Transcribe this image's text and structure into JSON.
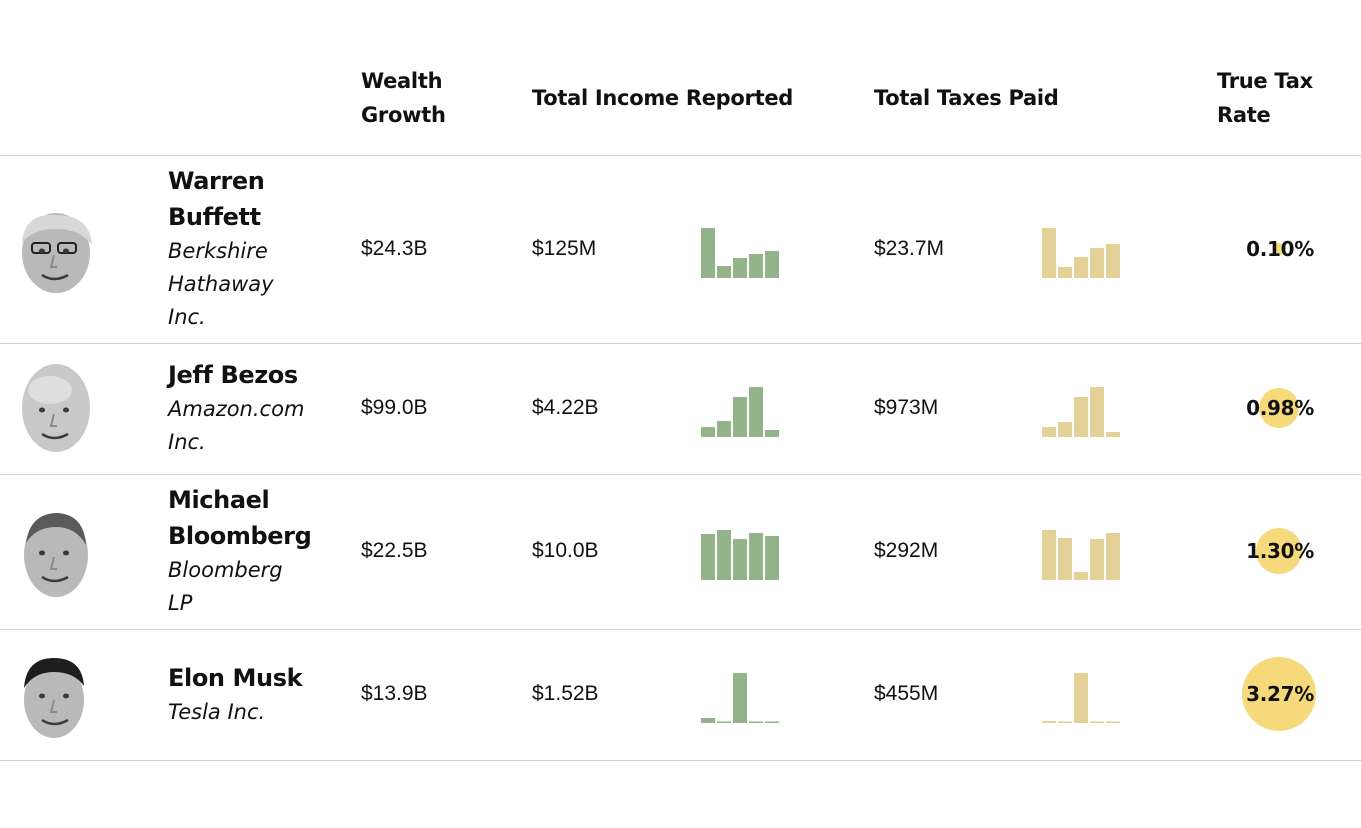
{
  "header": {
    "wealth_growth": [
      "Wealth",
      "Growth"
    ],
    "total_income": "Total Income Reported",
    "total_taxes": "Total Taxes Paid",
    "true_tax_rate": [
      "True Tax",
      "Rate"
    ]
  },
  "colors": {
    "income_bar": "#93b48a",
    "taxes_bar": "#e3d197",
    "rate_circle": "#f5d97a",
    "divider": "#cfcfcf"
  },
  "chart_data": {
    "type": "table",
    "columns": [
      "Wealth Growth",
      "Total Income Reported",
      "Total Taxes Paid",
      "True Tax Rate"
    ],
    "rows": [
      {
        "name_lines": [
          "Warren",
          "Buffett"
        ],
        "company_lines": [
          "Berkshire",
          "Hathaway",
          "Inc."
        ],
        "avatar": "warren-buffett-portrait",
        "wealth_growth": "$24.3B",
        "total_income": "$125M",
        "total_taxes": "$23.7M",
        "true_tax_rate": "0.10%",
        "rate_value": 0.1,
        "income_bars": [
          1.0,
          0.24,
          0.4,
          0.48,
          0.54
        ],
        "tax_bars": [
          1.0,
          0.22,
          0.42,
          0.6,
          0.68
        ]
      },
      {
        "name_lines": [
          "Jeff Bezos"
        ],
        "company_lines": [
          "Amazon.com",
          "Inc."
        ],
        "avatar": "jeff-bezos-portrait",
        "wealth_growth": "$99.0B",
        "total_income": "$4.22B",
        "total_taxes": "$973M",
        "true_tax_rate": "0.98%",
        "rate_value": 0.98,
        "income_bars": [
          0.2,
          0.32,
          0.8,
          1.0,
          0.14
        ],
        "tax_bars": [
          0.2,
          0.3,
          0.8,
          1.0,
          0.1
        ]
      },
      {
        "name_lines": [
          "Michael",
          "Bloomberg"
        ],
        "company_lines": [
          "Bloomberg",
          "LP"
        ],
        "avatar": "michael-bloomberg-portrait",
        "wealth_growth": "$22.5B",
        "total_income": "$10.0B",
        "total_taxes": "$292M",
        "true_tax_rate": "1.30%",
        "rate_value": 1.3,
        "income_bars": [
          0.92,
          1.0,
          0.82,
          0.94,
          0.88
        ],
        "tax_bars": [
          1.0,
          0.84,
          0.16,
          0.82,
          0.94
        ]
      },
      {
        "name_lines": [
          "Elon Musk"
        ],
        "company_lines": [
          "Tesla Inc."
        ],
        "avatar": "elon-musk-portrait",
        "wealth_growth": "$13.9B",
        "total_income": "$1.52B",
        "total_taxes": "$455M",
        "true_tax_rate": "3.27%",
        "rate_value": 3.27,
        "income_bars": [
          0.1,
          0.03,
          1.0,
          0.03,
          0.03
        ],
        "tax_bars": [
          0.04,
          0.03,
          1.0,
          0.03,
          0.03
        ]
      }
    ]
  }
}
